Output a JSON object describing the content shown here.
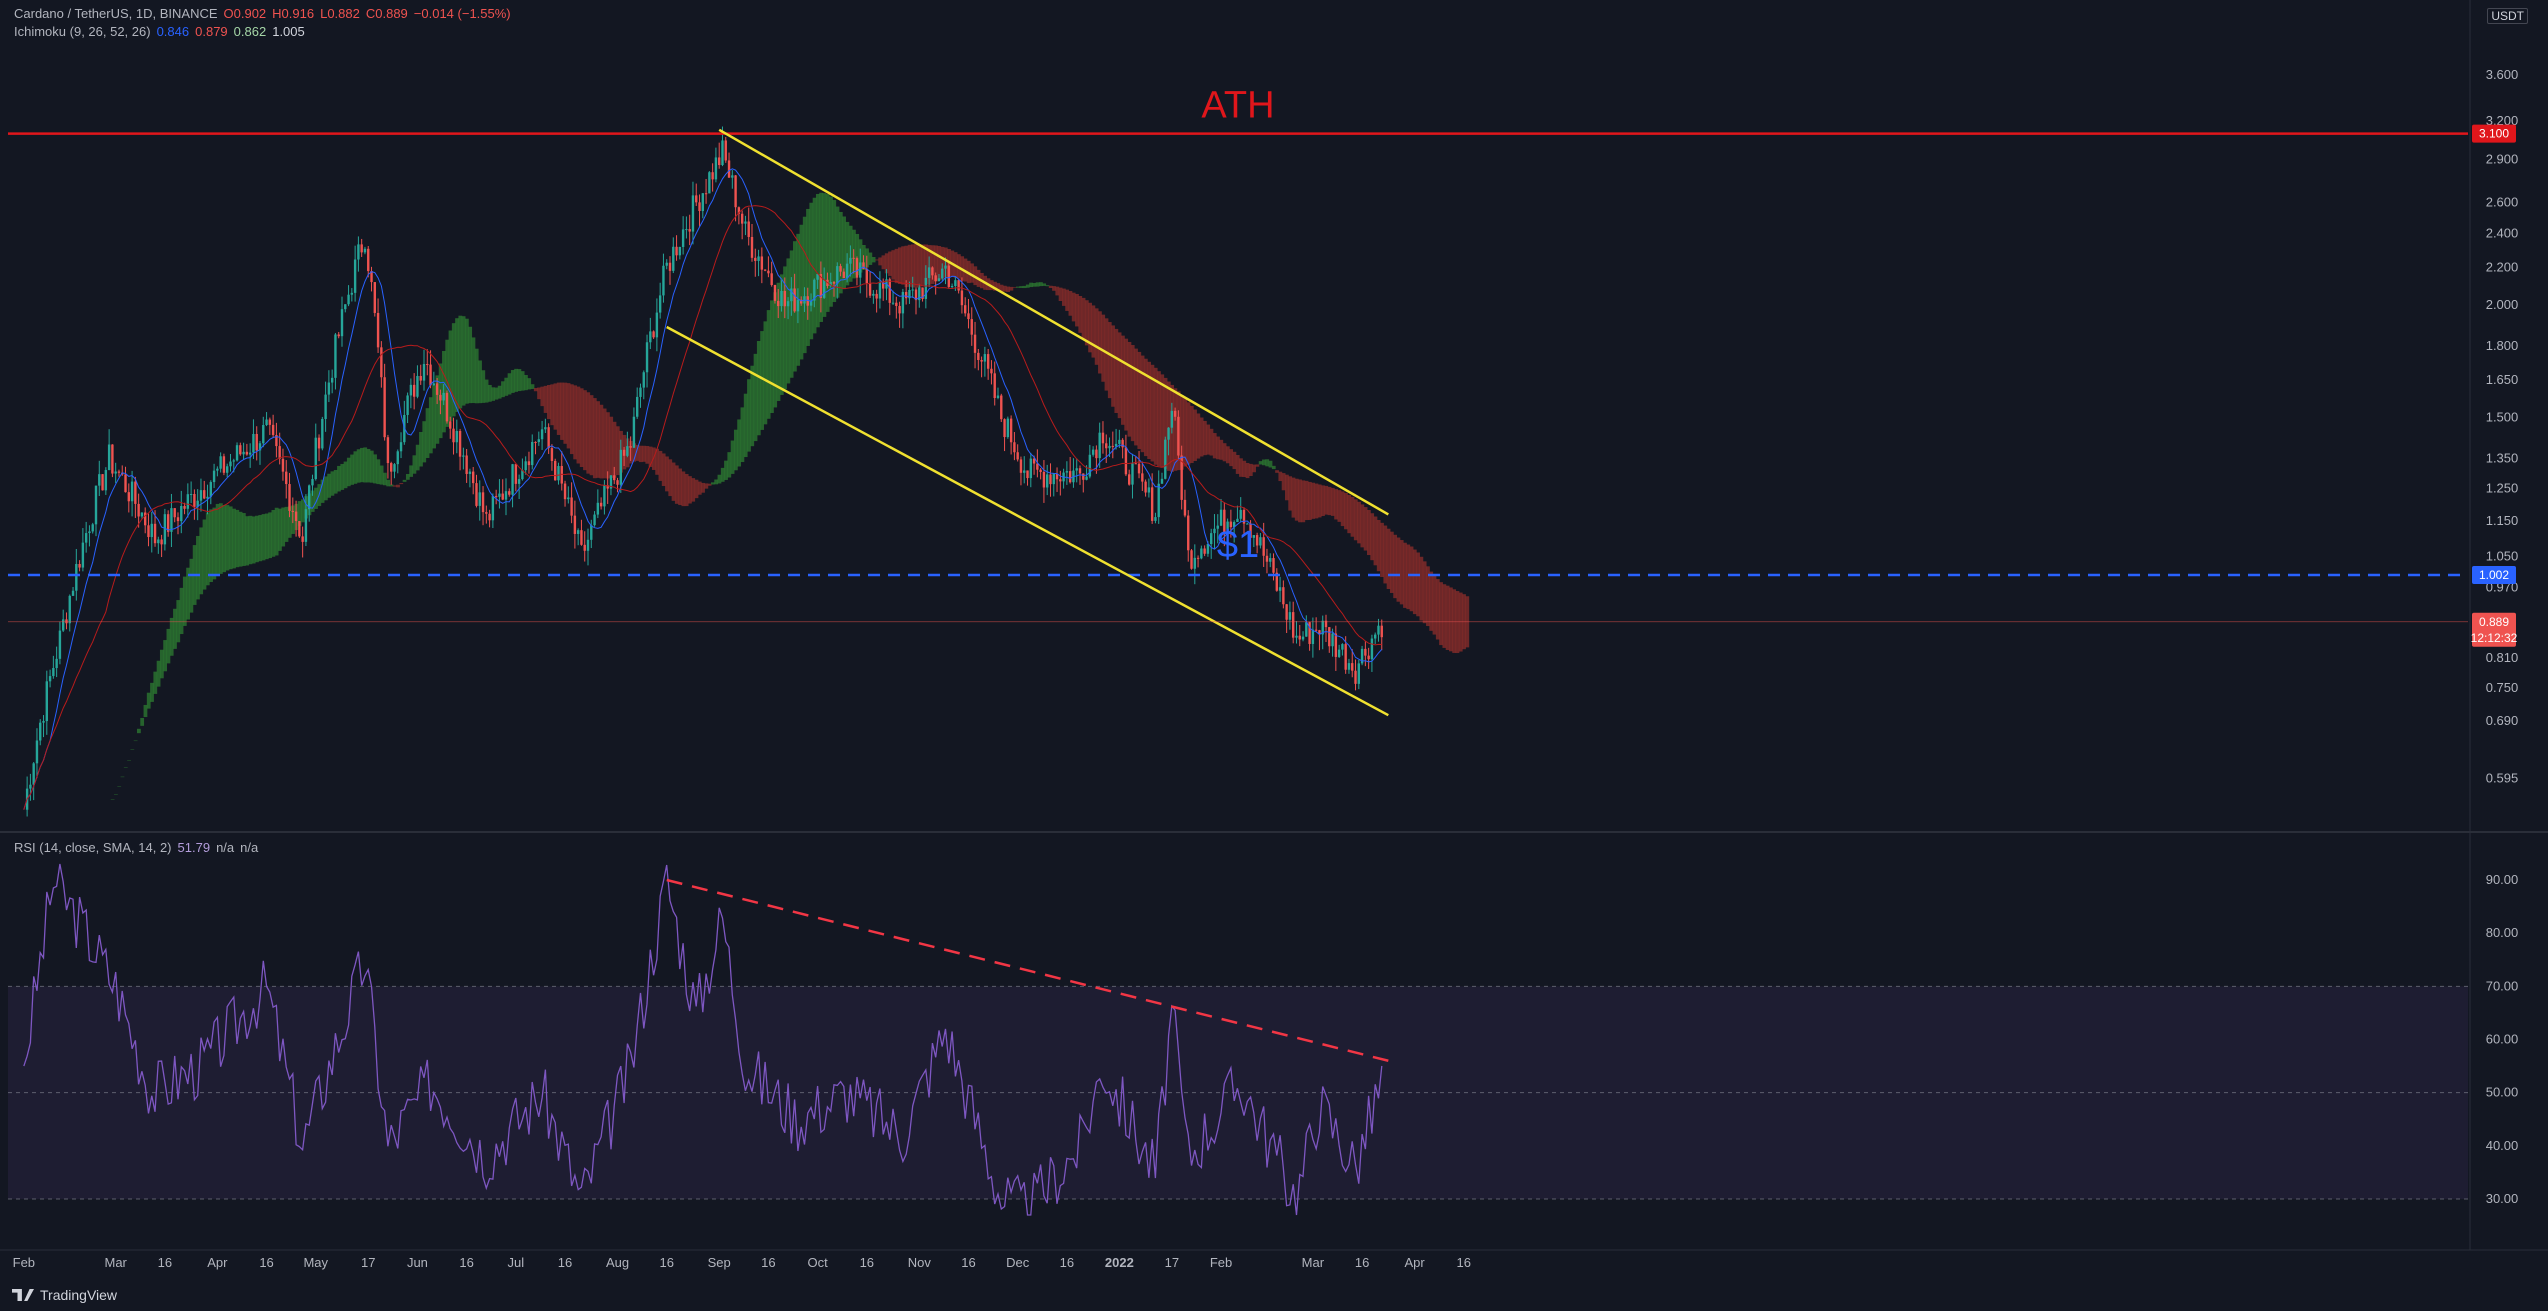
{
  "header": {
    "symbol": "Cardano / TetherUS, 1D, BINANCE",
    "open": "O0.902",
    "high": "H0.916",
    "low": "L0.882",
    "close": "C0.889",
    "change": "−0.014 (−1.55%)",
    "ichimoku_label": "Ichimoku (9, 26, 52, 26)",
    "ichimoku_vals": [
      "0.846",
      "0.879",
      "0.862",
      "1.005"
    ],
    "rsi_label": "RSI (14, close, SMA, 14, 2)",
    "rsi_val": "51.79",
    "rsi_na1": "n/a",
    "rsi_na2": "n/a"
  },
  "currency_badge": "USDT",
  "branding": "TradingView",
  "colors": {
    "background": "#131722",
    "up": "#26a69a",
    "down": "#ef5350",
    "cloud_bull": "#2e7d32",
    "cloud_bear": "#8d2e2b",
    "channel": "#f0e130",
    "ath_line": "#e0161b",
    "dollar_line": "#2962ff",
    "rsi_line": "#7e57c2"
  },
  "chart_data": [
    {
      "type": "candlestick",
      "title": "Cardano / TetherUS, 1D, BINANCE",
      "scale": "log",
      "x_ticks": [
        "Feb",
        "Mar",
        "16",
        "Apr",
        "16",
        "May",
        "17",
        "Jun",
        "16",
        "Jul",
        "16",
        "Aug",
        "16",
        "Sep",
        "16",
        "Oct",
        "16",
        "Nov",
        "16",
        "Dec",
        "16",
        "2022",
        "17",
        "Feb",
        "Mar",
        "16",
        "Apr",
        "16"
      ],
      "y_ticks": [
        3.6,
        3.2,
        2.9,
        2.6,
        2.4,
        2.2,
        2.0,
        1.8,
        1.65,
        1.5,
        1.35,
        1.25,
        1.15,
        1.05,
        0.97,
        0.81,
        0.75,
        0.69,
        0.595
      ],
      "ylim": [
        0.545,
        4.0
      ],
      "price_labels": {
        "ath": "3.100",
        "dollar": "1.002",
        "last": "0.889",
        "countdown": "12:12:32"
      },
      "close_series": [
        {
          "date": "2021-02-01",
          "close": 0.55
        },
        {
          "date": "2021-02-12",
          "close": 0.85
        },
        {
          "date": "2021-02-27",
          "close": 1.35
        },
        {
          "date": "2021-03-13",
          "close": 1.1
        },
        {
          "date": "2021-03-27",
          "close": 1.25
        },
        {
          "date": "2021-04-16",
          "close": 1.45
        },
        {
          "date": "2021-04-27",
          "close": 1.1
        },
        {
          "date": "2021-05-16",
          "close": 2.4
        },
        {
          "date": "2021-05-23",
          "close": 1.3
        },
        {
          "date": "2021-06-03",
          "close": 1.75
        },
        {
          "date": "2021-06-22",
          "close": 1.15
        },
        {
          "date": "2021-07-09",
          "close": 1.45
        },
        {
          "date": "2021-07-21",
          "close": 1.05
        },
        {
          "date": "2021-08-05",
          "close": 1.4
        },
        {
          "date": "2021-08-16",
          "close": 2.2
        },
        {
          "date": "2021-09-02",
          "close": 2.95
        },
        {
          "date": "2021-09-09",
          "close": 2.4
        },
        {
          "date": "2021-09-21",
          "close": 2.0
        },
        {
          "date": "2021-10-10",
          "close": 2.2
        },
        {
          "date": "2021-10-27",
          "close": 2.0
        },
        {
          "date": "2021-11-09",
          "close": 2.2
        },
        {
          "date": "2021-11-26",
          "close": 1.5
        },
        {
          "date": "2021-12-04",
          "close": 1.3
        },
        {
          "date": "2021-12-20",
          "close": 1.3
        },
        {
          "date": "2021-12-27",
          "close": 1.45
        },
        {
          "date": "2022-01-12",
          "close": 1.18
        },
        {
          "date": "2022-01-17",
          "close": 1.55
        },
        {
          "date": "2022-01-22",
          "close": 1.05
        },
        {
          "date": "2022-02-07",
          "close": 1.2
        },
        {
          "date": "2022-02-24",
          "close": 0.85
        },
        {
          "date": "2022-03-03",
          "close": 0.88
        },
        {
          "date": "2022-03-14",
          "close": 0.79
        },
        {
          "date": "2022-03-22",
          "close": 0.889
        }
      ],
      "annotations": [
        {
          "text": "ATH",
          "type": "horizontal",
          "value": 3.1
        },
        {
          "text": "$1",
          "type": "horizontal_dashed",
          "value": 1.002
        },
        {
          "type": "channel_upper",
          "from": {
            "date": "2021-09-01",
            "price": 3.13
          },
          "to": {
            "date": "2022-03-24",
            "price": 1.17
          }
        },
        {
          "type": "channel_lower",
          "from": {
            "date": "2021-08-16",
            "price": 1.89
          },
          "to": {
            "date": "2022-03-24",
            "price": 0.7
          }
        }
      ],
      "grid": false
    },
    {
      "type": "line",
      "title": "RSI (14, close, SMA, 14, 2)",
      "y_ticks": [
        90.0,
        80.0,
        70.0,
        60.0,
        50.0,
        40.0,
        30.0
      ],
      "ylim": [
        25,
        95
      ],
      "bands": [
        30,
        50,
        70
      ],
      "series": [
        {
          "name": "RSI",
          "values": [
            {
              "date": "2021-02-01",
              "v": 55
            },
            {
              "date": "2021-02-10",
              "v": 90
            },
            {
              "date": "2021-02-20",
              "v": 80
            },
            {
              "date": "2021-03-01",
              "v": 70
            },
            {
              "date": "2021-03-12",
              "v": 50
            },
            {
              "date": "2021-03-27",
              "v": 55
            },
            {
              "date": "2021-04-16",
              "v": 70
            },
            {
              "date": "2021-04-27",
              "v": 40
            },
            {
              "date": "2021-05-16",
              "v": 75
            },
            {
              "date": "2021-05-23",
              "v": 40
            },
            {
              "date": "2021-06-05",
              "v": 52
            },
            {
              "date": "2021-06-22",
              "v": 38
            },
            {
              "date": "2021-07-09",
              "v": 50
            },
            {
              "date": "2021-07-21",
              "v": 30
            },
            {
              "date": "2021-08-05",
              "v": 55
            },
            {
              "date": "2021-08-16",
              "v": 90
            },
            {
              "date": "2021-08-25",
              "v": 65
            },
            {
              "date": "2021-09-02",
              "v": 83
            },
            {
              "date": "2021-09-09",
              "v": 55
            },
            {
              "date": "2021-09-25",
              "v": 45
            },
            {
              "date": "2021-10-10",
              "v": 50
            },
            {
              "date": "2021-10-27",
              "v": 42
            },
            {
              "date": "2021-11-09",
              "v": 62
            },
            {
              "date": "2021-11-26",
              "v": 30
            },
            {
              "date": "2021-12-04",
              "v": 28
            },
            {
              "date": "2021-12-20",
              "v": 40
            },
            {
              "date": "2021-12-27",
              "v": 55
            },
            {
              "date": "2022-01-12",
              "v": 35
            },
            {
              "date": "2022-01-17",
              "v": 65
            },
            {
              "date": "2022-01-22",
              "v": 38
            },
            {
              "date": "2022-02-07",
              "v": 52
            },
            {
              "date": "2022-02-24",
              "v": 30
            },
            {
              "date": "2022-03-03",
              "v": 48
            },
            {
              "date": "2022-03-14",
              "v": 36
            },
            {
              "date": "2022-03-22",
              "v": 52
            }
          ]
        }
      ],
      "trendline": {
        "from": {
          "date": "2021-08-16",
          "v": 90
        },
        "to": {
          "date": "2022-03-24",
          "v": 56
        }
      }
    }
  ]
}
